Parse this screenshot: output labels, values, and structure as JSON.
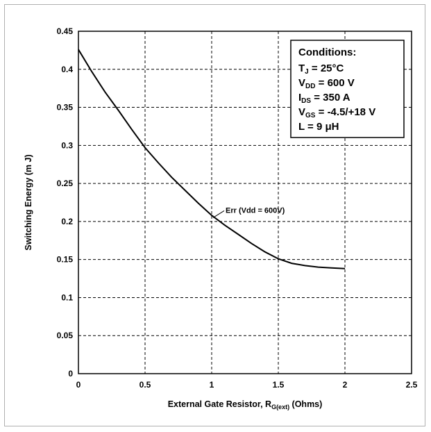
{
  "chart_data": {
    "type": "line",
    "xlabel": {
      "main": "External Gate Resistor, R",
      "sub": "G(ext)",
      "tail": " (Ohms)"
    },
    "ylabel": "Switching Energy (m J)",
    "xlim": [
      0,
      2.5
    ],
    "ylim": [
      0,
      0.45
    ],
    "xticks": [
      "0",
      "0.5",
      "1",
      "1.5",
      "2",
      "2.5"
    ],
    "yticks": [
      "0",
      "0.05",
      "0.1",
      "0.15",
      "0.2",
      "0.25",
      "0.3",
      "0.35",
      "0.4",
      "0.45"
    ],
    "grid": true,
    "series": [
      {
        "name": "Err (Vdd = 600V)",
        "x": [
          0,
          0.1,
          0.2,
          0.3,
          0.4,
          0.5,
          0.6,
          0.7,
          0.8,
          0.9,
          1.0,
          1.1,
          1.2,
          1.3,
          1.4,
          1.5,
          1.6,
          1.7,
          1.8,
          1.9,
          2.0
        ],
        "y": [
          0.426,
          0.397,
          0.37,
          0.346,
          0.321,
          0.297,
          0.277,
          0.258,
          0.241,
          0.224,
          0.208,
          0.195,
          0.183,
          0.171,
          0.16,
          0.151,
          0.145,
          0.142,
          0.14,
          0.139,
          0.138
        ]
      }
    ],
    "annotation": {
      "text": "Err (Vdd = 600V)",
      "x": 1.0,
      "y": 0.205
    },
    "conditions": {
      "title": "Conditions:",
      "lines": [
        {
          "main": "T",
          "sub": "J",
          "rest": " = 25°C"
        },
        {
          "main": "V",
          "sub": "DD",
          "rest": " = 600 V"
        },
        {
          "main": "I",
          "sub": "DS",
          "rest": " = 350 A"
        },
        {
          "main": "V",
          "sub": "GS",
          "rest": " = -4.5/+18 V"
        },
        {
          "main": "L = 9 μH",
          "sub": "",
          "rest": ""
        }
      ]
    },
    "line_color": "#000000",
    "grid_color": "#000000"
  }
}
